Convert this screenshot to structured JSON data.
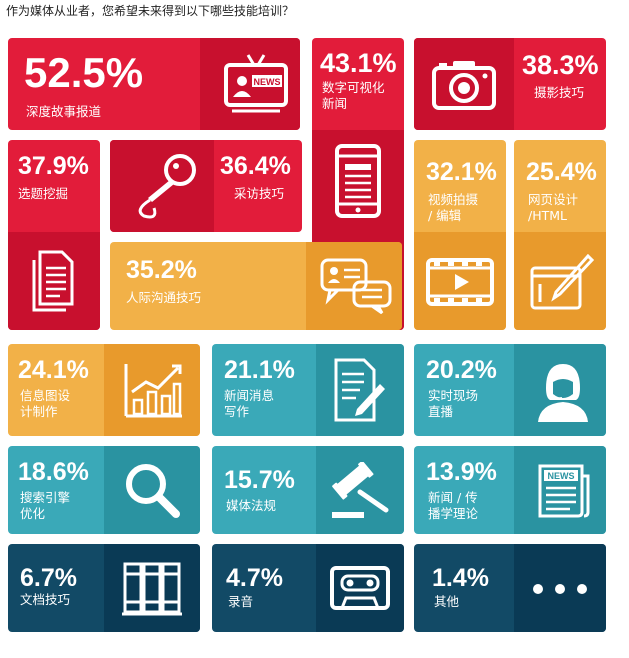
{
  "title": "作为媒体从业者，您希望未来得到以下哪些技能培训？",
  "colors": {
    "red": "#e21c3a",
    "red_panel": "#c8102e",
    "orange": "#f2b148",
    "orange_panel": "#e89a2c",
    "teal": "#3aa9b8",
    "teal_panel": "#2a93a1",
    "navy": "#124a66",
    "navy_panel": "#0a3a55"
  },
  "chart_data": {
    "type": "table",
    "title": "作为媒体从业者，您希望未来得到以下哪些技能培训？",
    "unit": "%",
    "items": [
      {
        "label": "深度故事报道",
        "value": 52.5,
        "display": "52.5%",
        "color": "red",
        "icon": "tv-news-icon"
      },
      {
        "label": "数字可视化\n新闻",
        "value": 43.1,
        "display": "43.1%",
        "color": "red",
        "icon": "tablet-news-icon"
      },
      {
        "label": "摄影技巧",
        "value": 38.3,
        "display": "38.3%",
        "color": "red",
        "icon": "camera-icon"
      },
      {
        "label": "选题挖掘",
        "value": 37.9,
        "display": "37.9%",
        "color": "red",
        "icon": "documents-icon"
      },
      {
        "label": "采访技巧",
        "value": 36.4,
        "display": "36.4%",
        "color": "red",
        "icon": "microphone-icon"
      },
      {
        "label": "人际沟通技巧",
        "value": 35.2,
        "display": "35.2%",
        "color": "orange",
        "icon": "chat-bubbles-icon"
      },
      {
        "label": "视频拍摄\n/ 编辑",
        "value": 32.1,
        "display": "32.1%",
        "color": "orange",
        "icon": "video-film-icon"
      },
      {
        "label": "网页设计\n/HTML",
        "value": 25.4,
        "display": "25.4%",
        "color": "orange",
        "icon": "web-design-icon"
      },
      {
        "label": "信息图设\n计制作",
        "value": 24.1,
        "display": "24.1%",
        "color": "orange",
        "icon": "bar-chart-icon"
      },
      {
        "label": "新闻消息\n写作",
        "value": 21.1,
        "display": "21.1%",
        "color": "teal",
        "icon": "document-pen-icon"
      },
      {
        "label": "实时现场\n直播",
        "value": 20.2,
        "display": "20.2%",
        "color": "teal",
        "icon": "headset-presenter-icon"
      },
      {
        "label": "搜索引擎\n优化",
        "value": 18.6,
        "display": "18.6%",
        "color": "teal",
        "icon": "magnifier-icon"
      },
      {
        "label": "媒体法规",
        "value": 15.7,
        "display": "15.7%",
        "color": "teal",
        "icon": "gavel-icon"
      },
      {
        "label": "新闻 / 传\n播学理论",
        "value": 13.9,
        "display": "13.9%",
        "color": "teal",
        "icon": "newspaper-icon"
      },
      {
        "label": "文档技巧",
        "value": 6.7,
        "display": "6.7%",
        "color": "navy",
        "icon": "binders-icon"
      },
      {
        "label": "录音",
        "value": 4.7,
        "display": "4.7%",
        "color": "navy",
        "icon": "cassette-icon"
      },
      {
        "label": "其他",
        "value": 1.4,
        "display": "1.4%",
        "color": "navy",
        "icon": "ellipsis-icon"
      }
    ]
  }
}
